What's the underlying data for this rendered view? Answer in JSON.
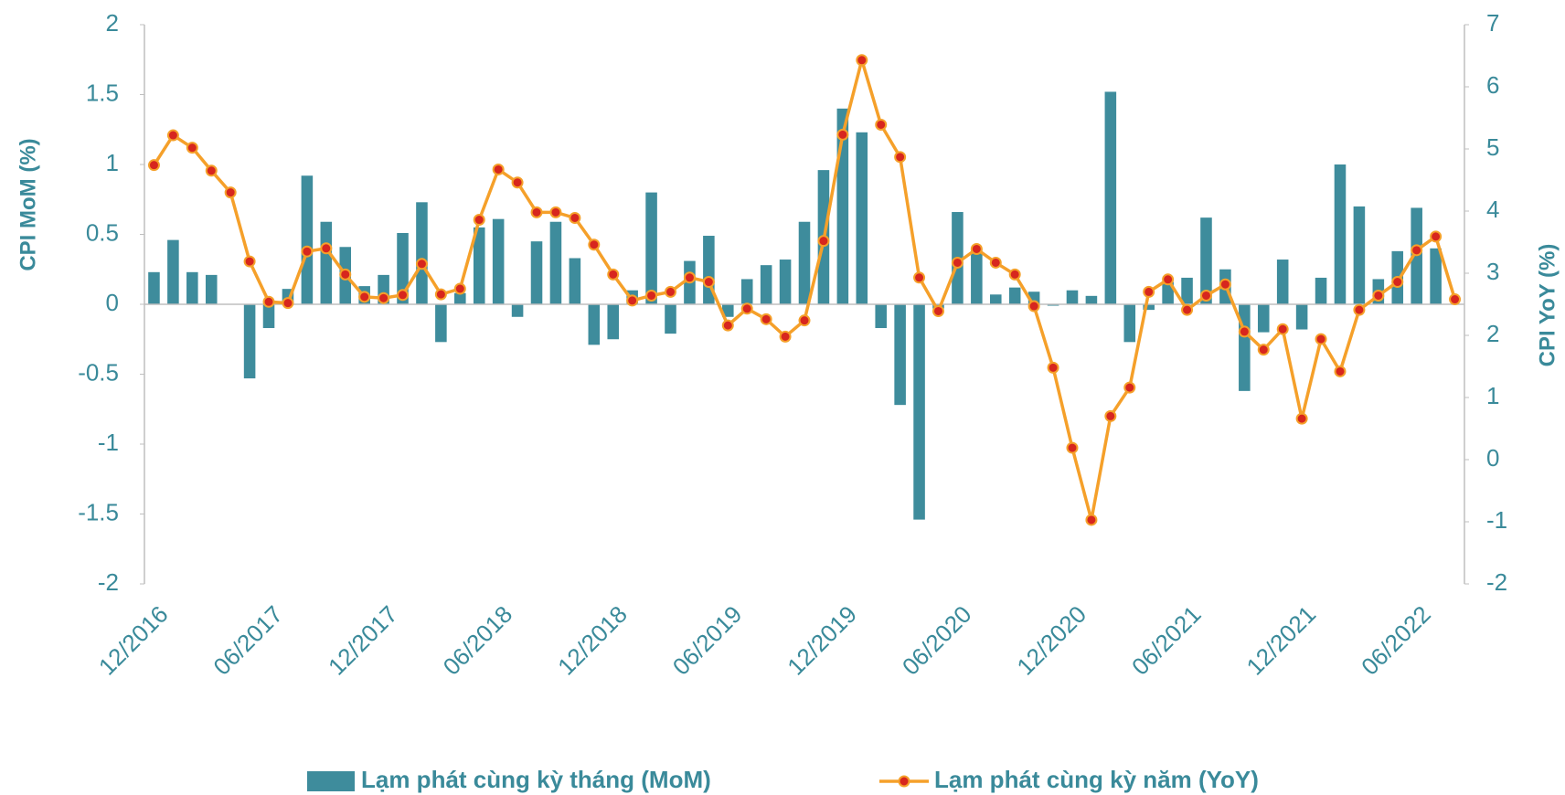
{
  "chart_data": {
    "type": "bar_line",
    "y_label": "CPI MoM (%)",
    "y2_label": "CPI YoY (%)",
    "categories": [
      "12/2016",
      null,
      null,
      null,
      null,
      null,
      "06/2017",
      null,
      null,
      null,
      null,
      null,
      "12/2017",
      null,
      null,
      null,
      null,
      null,
      "06/2018",
      null,
      null,
      null,
      null,
      null,
      "12/2018",
      null,
      null,
      null,
      null,
      null,
      "06/2019",
      null,
      null,
      null,
      null,
      null,
      "12/2019",
      null,
      null,
      null,
      null,
      null,
      "06/2020",
      null,
      null,
      null,
      null,
      null,
      "12/2020",
      null,
      null,
      null,
      null,
      null,
      "06/2021",
      null,
      null,
      null,
      null,
      null,
      "12/2021",
      null,
      null,
      null,
      null,
      null,
      "06/2022",
      null,
      null
    ],
    "series": [
      {
        "name": "Lạm phát cùng kỳ tháng (MoM)",
        "type": "bar",
        "color": "#3e8c9c",
        "values": [
          0.23,
          0.46,
          0.23,
          0.21,
          0,
          -0.53,
          -0.17,
          0.11,
          0.92,
          0.59,
          0.41,
          0.13,
          0.21,
          0.51,
          0.73,
          -0.27,
          0.08,
          0.55,
          0.61,
          -0.09,
          0.45,
          0.59,
          0.33,
          -0.29,
          -0.25,
          0.1,
          0.8,
          -0.21,
          0.31,
          0.49,
          -0.09,
          0.18,
          0.28,
          0.32,
          0.59,
          0.96,
          1.4,
          1.23,
          -0.17,
          -0.72,
          -1.54,
          -0.03,
          0.66,
          0.4,
          0.07,
          0.12,
          0.09,
          -0.01,
          0.1,
          0.06,
          1.52,
          -0.27,
          -0.04,
          0.16,
          0.19,
          0.62,
          0.25,
          -0.62,
          -0.2,
          0.32,
          -0.18,
          0.19,
          1.0,
          0.7,
          0.18,
          0.38,
          0.69,
          0.4,
          0
        ]
      },
      {
        "name": "Lạm phát cùng kỳ năm (YoY)",
        "type": "line",
        "axis": "y2",
        "color": "#f5a02a",
        "marker_color": "#d7261e",
        "values": [
          4.74,
          5.22,
          5.02,
          4.65,
          4.3,
          3.19,
          2.54,
          2.52,
          3.35,
          3.4,
          2.98,
          2.62,
          2.6,
          2.65,
          3.15,
          2.66,
          2.75,
          3.86,
          4.67,
          4.46,
          3.98,
          3.98,
          3.89,
          3.46,
          2.98,
          2.56,
          2.64,
          2.7,
          2.93,
          2.86,
          2.16,
          2.43,
          2.26,
          1.98,
          2.24,
          3.52,
          5.23,
          6.43,
          5.39,
          4.87,
          2.93,
          2.39,
          3.17,
          3.39,
          3.17,
          2.98,
          2.47,
          1.48,
          0.19,
          -0.97,
          0.7,
          1.16,
          2.7,
          2.9,
          2.41,
          2.64,
          2.82,
          2.06,
          1.77,
          2.1,
          0.66,
          1.94,
          1.42,
          2.41,
          2.64,
          2.86,
          3.37,
          3.59,
          2.58
        ]
      }
    ],
    "ylim": [
      -2,
      2
    ],
    "yticks": [
      -2,
      -1.5,
      -1,
      -0.5,
      0,
      0.5,
      1,
      1.5,
      2
    ],
    "y2lim": [
      -2,
      7
    ],
    "y2ticks": [
      -2,
      -1,
      0,
      1,
      2,
      3,
      4,
      5,
      6,
      7
    ],
    "legend": "bottom"
  }
}
